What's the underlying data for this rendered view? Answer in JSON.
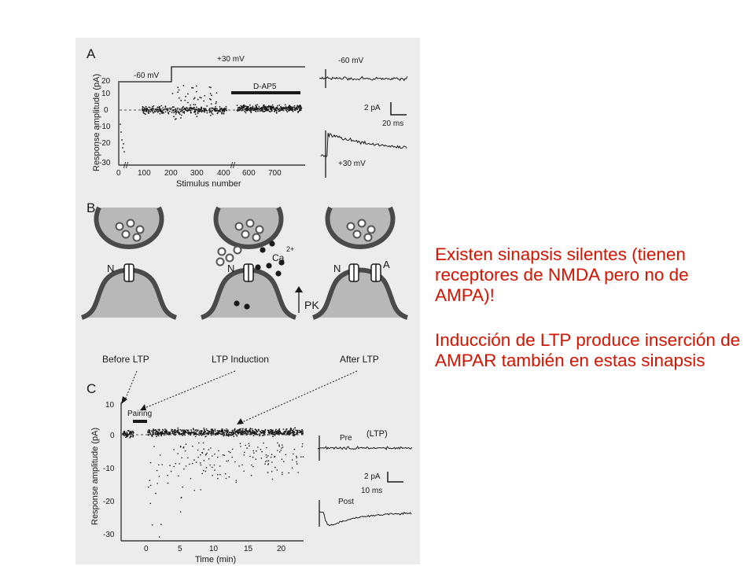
{
  "figure": {
    "panel_a": {
      "label": "A",
      "ylabel": "Response amplitude  (pA)",
      "xlabel": "Stimulus number",
      "yticks": [
        "20",
        "10",
        "0",
        "-10",
        "-20",
        "-30"
      ],
      "xticks": [
        "0",
        "100",
        "200",
        "300",
        "400",
        "600",
        "700"
      ],
      "hold_low": "-60 mV",
      "hold_high": "+30 mV",
      "drug": "D-AP5",
      "trace_top": "-60 mV",
      "trace_bottom": "+30 mV",
      "scale_amp": "2 pA",
      "scale_time": "20 ms"
    },
    "panel_b": {
      "label": "B",
      "n_label_1": "N",
      "n_label_2": "N",
      "n_label_3": "N",
      "a_label": "A",
      "ca_label": "Ca",
      "ca_charge": "2+",
      "pk_label": "PK",
      "cap_before": "Before LTP",
      "cap_induction": "LTP Induction",
      "cap_after": "After LTP"
    },
    "panel_c": {
      "label": "C",
      "ylabel": "Response amplitude  (pA)",
      "xlabel": "Time (min)",
      "yticks": [
        "10",
        "0",
        "-10",
        "-20",
        "-30"
      ],
      "xticks": [
        "0",
        "5",
        "10",
        "15",
        "20"
      ],
      "pairing": "Pairing",
      "ltp_note": "(LTP)",
      "trace_pre": "Pre",
      "trace_post": "Post",
      "scale_amp": "2 pA",
      "scale_time": "10 ms"
    }
  },
  "text": {
    "para1": "Existen sinapsis silentes (tienen receptores de NMDA pero no de AMPA)!",
    "para2": "Inducción de LTP produce inserción de AMPAR también en estas sinapsis"
  },
  "colors": {
    "figure_bg": "#ececec",
    "text_red": "#d41400",
    "ink": "#1a1a1a"
  }
}
